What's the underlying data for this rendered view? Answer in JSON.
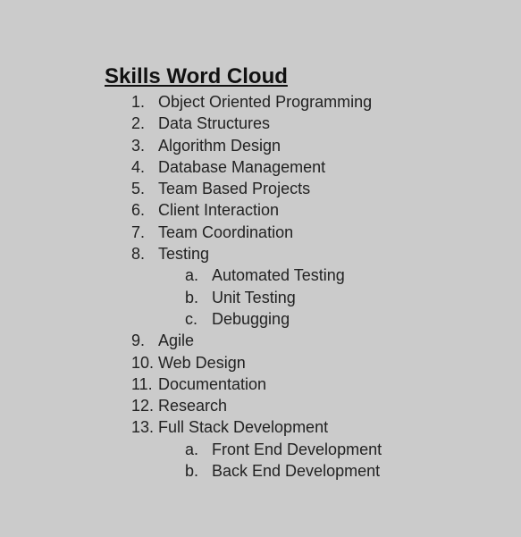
{
  "document": {
    "title": "Skills Word Cloud",
    "items": [
      {
        "marker": "1.",
        "text": "Object Oriented Programming",
        "level": 1
      },
      {
        "marker": "2.",
        "text": "Data Structures",
        "level": 1
      },
      {
        "marker": "3.",
        "text": "Algorithm Design",
        "level": 1
      },
      {
        "marker": "4.",
        "text": "Database Management",
        "level": 1
      },
      {
        "marker": "5.",
        "text": "Team Based Projects",
        "level": 1
      },
      {
        "marker": "6.",
        "text": "Client Interaction",
        "level": 1
      },
      {
        "marker": "7.",
        "text": "Team Coordination",
        "level": 1
      },
      {
        "marker": "8.",
        "text": "Testing",
        "level": 1
      },
      {
        "marker": "a.",
        "text": "Automated Testing",
        "level": 2
      },
      {
        "marker": "b.",
        "text": "Unit Testing",
        "level": 2
      },
      {
        "marker": "c.",
        "text": "Debugging",
        "level": 2
      },
      {
        "marker": "9.",
        "text": "Agile",
        "level": 1
      },
      {
        "marker": "10.",
        "text": "Web Design",
        "level": 1
      },
      {
        "marker": "11.",
        "text": "Documentation",
        "level": 1
      },
      {
        "marker": "12.",
        "text": "Research",
        "level": 1
      },
      {
        "marker": "13.",
        "text": "Full Stack Development",
        "level": 1
      },
      {
        "marker": "a.",
        "text": "Front End Development",
        "level": 2
      },
      {
        "marker": "b.",
        "text": "Back End Development",
        "level": 2
      }
    ]
  }
}
